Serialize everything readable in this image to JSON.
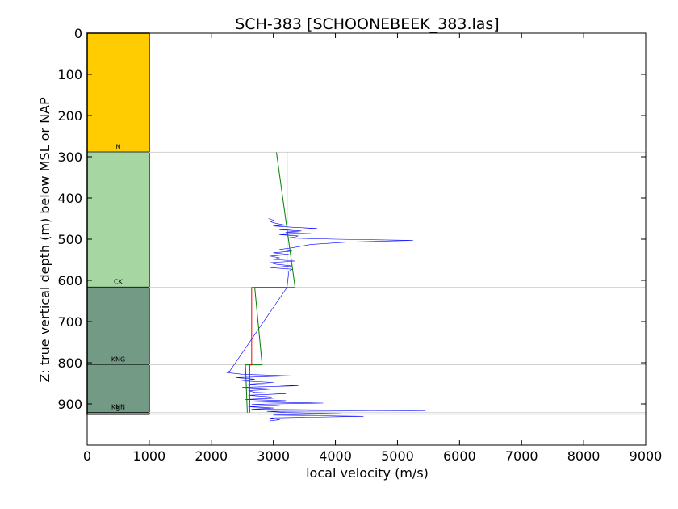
{
  "chart_data": {
    "type": "line",
    "title": "SCH-383 [SCHOONEBEEK_383.las]",
    "xlabel": "local velocity (m/s)",
    "ylabel": "Z: true vertical depth (m) below MSL or NAP",
    "xlim": [
      0,
      9000
    ],
    "ylim": [
      0,
      1000
    ],
    "y_inverted": true,
    "x_ticks": [
      0,
      1000,
      2000,
      3000,
      4000,
      5000,
      6000,
      7000,
      8000,
      9000
    ],
    "y_ticks": [
      0,
      100,
      200,
      300,
      400,
      500,
      600,
      700,
      800,
      900
    ],
    "grid": false,
    "strat_column": {
      "x_range": [
        0,
        1000
      ],
      "units": [
        {
          "label": "N",
          "top": 0,
          "bottom": 289,
          "color": "#fecc00"
        },
        {
          "label": "CK",
          "top": 289,
          "bottom": 617,
          "color": "#a6d7a2"
        },
        {
          "label": "KNG",
          "top": 617,
          "bottom": 805,
          "color": "#739a85"
        },
        {
          "label": "KNN",
          "top": 805,
          "bottom": 921,
          "color": "#739a85"
        },
        {
          "label": "S",
          "top": 921,
          "bottom": 925,
          "color": "#739a85"
        }
      ]
    },
    "boundaries": [
      289,
      617,
      805,
      921,
      925
    ],
    "series": [
      {
        "color": "#0000ff",
        "points": [
          [
            2920,
            450
          ],
          [
            3000,
            454
          ],
          [
            2960,
            458
          ],
          [
            3050,
            462
          ],
          [
            3200,
            466
          ],
          [
            3000,
            468
          ],
          [
            3300,
            471
          ],
          [
            3700,
            474
          ],
          [
            3100,
            477
          ],
          [
            3450,
            480
          ],
          [
            3200,
            483
          ],
          [
            3600,
            486
          ],
          [
            3100,
            489
          ],
          [
            3400,
            492
          ],
          [
            3350,
            495
          ],
          [
            3200,
            497
          ],
          [
            4000,
            500
          ],
          [
            5250,
            503
          ],
          [
            4200,
            507
          ],
          [
            3900,
            510
          ],
          [
            3600,
            513
          ],
          [
            3450,
            517
          ],
          [
            3300,
            521
          ],
          [
            3100,
            525
          ],
          [
            3300,
            529
          ],
          [
            3000,
            533
          ],
          [
            3250,
            537
          ],
          [
            2950,
            541
          ],
          [
            3100,
            545
          ],
          [
            3000,
            549
          ],
          [
            3350,
            553
          ],
          [
            2950,
            557
          ],
          [
            3050,
            561
          ],
          [
            3300,
            565
          ],
          [
            2950,
            569
          ],
          [
            3300,
            573
          ],
          [
            3250,
            578
          ],
          [
            3220,
            617
          ],
          [
            2300,
            820
          ],
          [
            2250,
            824
          ],
          [
            2500,
            828
          ],
          [
            3300,
            832
          ],
          [
            2400,
            836
          ],
          [
            2700,
            840
          ],
          [
            2450,
            844
          ],
          [
            3000,
            848
          ],
          [
            2600,
            852
          ],
          [
            3400,
            856
          ],
          [
            2500,
            860
          ],
          [
            3000,
            864
          ],
          [
            2600,
            868
          ],
          [
            2700,
            872
          ],
          [
            3200,
            875
          ],
          [
            2600,
            879
          ],
          [
            2950,
            883
          ],
          [
            3000,
            886
          ],
          [
            2550,
            889
          ],
          [
            3200,
            892
          ],
          [
            2600,
            895
          ],
          [
            3800,
            898
          ],
          [
            2650,
            901
          ],
          [
            3100,
            904
          ],
          [
            2600,
            907
          ],
          [
            3000,
            910
          ],
          [
            2650,
            913
          ],
          [
            5450,
            916
          ],
          [
            2900,
            918
          ],
          [
            3200,
            921
          ],
          [
            4100,
            924
          ],
          [
            3000,
            927
          ],
          [
            4450,
            930
          ],
          [
            2950,
            934
          ],
          [
            3100,
            938
          ],
          [
            2950,
            941
          ]
        ]
      },
      {
        "color": "#ff0000",
        "points": [
          [
            3220,
            289
          ],
          [
            3220,
            617
          ],
          [
            2650,
            617
          ],
          [
            2650,
            805
          ],
          [
            2620,
            805
          ],
          [
            2620,
            921
          ]
        ]
      },
      {
        "color": "#008000",
        "points": [
          [
            3050,
            289
          ],
          [
            3350,
            617
          ],
          [
            2700,
            617
          ],
          [
            2820,
            805
          ],
          [
            2550,
            805
          ],
          [
            2580,
            921
          ]
        ]
      }
    ]
  }
}
